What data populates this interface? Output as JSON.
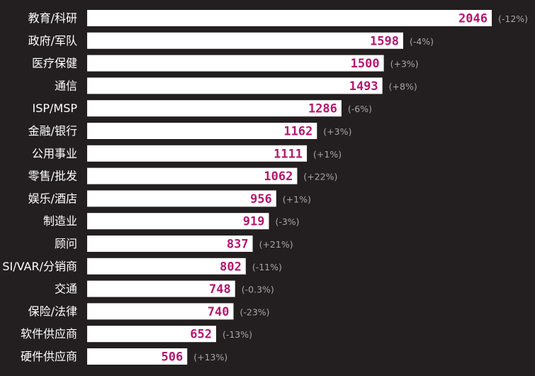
{
  "chart_data": {
    "type": "bar",
    "orientation": "horizontal",
    "categories": [
      "教育/科研",
      "政府/军队",
      "医疗保健",
      "通信",
      "ISP/MSP",
      "金融/银行",
      "公用事业",
      "零售/批发",
      "娱乐/酒店",
      "制造业",
      "顾问",
      "SI/VAR/分销商",
      "交通",
      "保险/法律",
      "软件供应商",
      "硬件供应商"
    ],
    "values": [
      2046,
      1598,
      1500,
      1493,
      1286,
      1162,
      1111,
      1062,
      956,
      919,
      837,
      802,
      748,
      740,
      652,
      506
    ],
    "value_labels": [
      "2046",
      "1598",
      "1500",
      "1493",
      "1286",
      "1162",
      "1111",
      "1062",
      "956",
      "919",
      "837",
      "802",
      "748",
      "740",
      "652",
      "506"
    ],
    "change_labels": [
      "(-12%)",
      "(-4%)",
      "(+3%)",
      "(+8%)",
      "(-6%)",
      "(+3%)",
      "(+1%)",
      "(+22%)",
      "(+1%)",
      "(-3%)",
      "(+21%)",
      "(-11%)",
      "(-0.3%)",
      "(-23%)",
      "(-13%)",
      "(+13%)"
    ],
    "title": "",
    "xlabel": "",
    "ylabel": "",
    "xlim": [
      0,
      2046
    ],
    "grid": false,
    "legend": "none",
    "colors": {
      "background": "#231f20",
      "bar": "#ffffff",
      "value_text": "#b5176e",
      "category_text": "#ffffff",
      "change_text": "#a7a5a6"
    }
  }
}
